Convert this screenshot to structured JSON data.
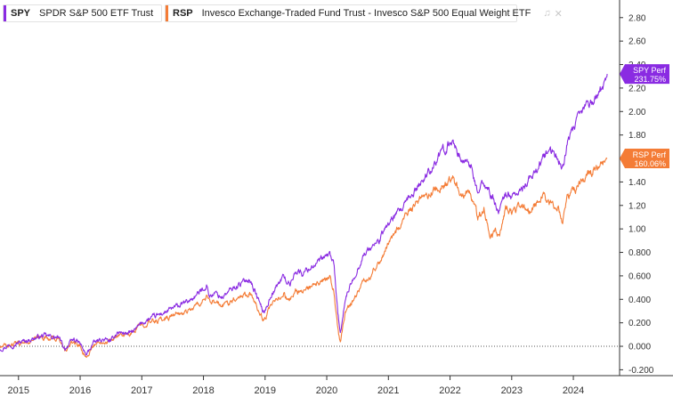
{
  "legend": {
    "items": [
      {
        "symbol": "SPY",
        "name": "SPDR S&P 500 ETF Trust",
        "color": "#8a2be2"
      },
      {
        "symbol": "RSP",
        "name": "Invesco Exchange-Traded Fund Trust - Invesco S&P 500 Equal Weight ETF",
        "color": "#f47c36"
      }
    ]
  },
  "chart_data": {
    "type": "line",
    "title": "",
    "xlabel": "",
    "ylabel": "",
    "xlim": [
      2014.7,
      2024.75
    ],
    "ylim": [
      -0.25,
      2.95
    ],
    "x_ticks": [
      "2015",
      "2016",
      "2017",
      "2018",
      "2019",
      "2020",
      "2021",
      "2022",
      "2023",
      "2024"
    ],
    "y_ticks": [
      "2.80",
      "2.60",
      "2.40",
      "2.20",
      "2.00",
      "1.80",
      "1.60",
      "1.40",
      "1.20",
      "1.00",
      "0.800",
      "0.600",
      "0.400",
      "0.200",
      "0.000",
      "-0.200"
    ],
    "zero_line": true,
    "series": [
      {
        "name": "SPY",
        "label": "SPY Perf",
        "last_value": "231.75%",
        "color": "#8a2be2",
        "x": [
          2014.7,
          2014.85,
          2015.0,
          2015.2,
          2015.4,
          2015.55,
          2015.65,
          2015.75,
          2015.9,
          2016.0,
          2016.1,
          2016.2,
          2016.35,
          2016.5,
          2016.6,
          2016.8,
          2016.9,
          2017.0,
          2017.25,
          2017.5,
          2017.75,
          2017.9,
          2018.05,
          2018.1,
          2018.2,
          2018.3,
          2018.5,
          2018.75,
          2018.85,
          2018.98,
          2019.1,
          2019.3,
          2019.4,
          2019.5,
          2019.6,
          2019.75,
          2019.9,
          2020.05,
          2020.12,
          2020.18,
          2020.22,
          2020.3,
          2020.45,
          2020.6,
          2020.7,
          2020.85,
          2021.0,
          2021.2,
          2021.4,
          2021.6,
          2021.8,
          2021.95,
          2022.05,
          2022.2,
          2022.3,
          2022.45,
          2022.55,
          2022.65,
          2022.75,
          2022.8,
          2022.9,
          2023.0,
          2023.15,
          2023.3,
          2023.5,
          2023.6,
          2023.75,
          2023.82,
          2023.9,
          2024.05,
          2024.2,
          2024.35,
          2024.45,
          2024.55
        ],
        "values": [
          -0.02,
          0.01,
          0.03,
          0.06,
          0.09,
          0.08,
          0.07,
          -0.02,
          0.06,
          0.02,
          -0.08,
          0.02,
          0.06,
          0.04,
          0.12,
          0.11,
          0.14,
          0.2,
          0.26,
          0.32,
          0.38,
          0.44,
          0.52,
          0.43,
          0.45,
          0.42,
          0.5,
          0.58,
          0.45,
          0.28,
          0.44,
          0.6,
          0.52,
          0.65,
          0.62,
          0.68,
          0.73,
          0.78,
          0.7,
          0.25,
          0.1,
          0.4,
          0.6,
          0.78,
          0.83,
          0.9,
          1.05,
          1.15,
          1.3,
          1.45,
          1.6,
          1.7,
          1.76,
          1.56,
          1.6,
          1.3,
          1.4,
          1.3,
          1.2,
          1.15,
          1.3,
          1.28,
          1.32,
          1.42,
          1.6,
          1.65,
          1.62,
          1.5,
          1.72,
          1.9,
          2.05,
          2.1,
          2.18,
          2.32
        ]
      },
      {
        "name": "RSP",
        "label": "RSP Perf",
        "last_value": "160.06%",
        "color": "#f47c36",
        "x": [
          2014.7,
          2014.85,
          2015.0,
          2015.2,
          2015.4,
          2015.55,
          2015.65,
          2015.75,
          2015.9,
          2016.0,
          2016.1,
          2016.2,
          2016.35,
          2016.5,
          2016.6,
          2016.8,
          2016.9,
          2017.0,
          2017.25,
          2017.5,
          2017.75,
          2017.9,
          2018.05,
          2018.1,
          2018.2,
          2018.3,
          2018.5,
          2018.75,
          2018.85,
          2018.98,
          2019.1,
          2019.3,
          2019.4,
          2019.5,
          2019.6,
          2019.75,
          2019.9,
          2020.05,
          2020.12,
          2020.18,
          2020.22,
          2020.3,
          2020.45,
          2020.6,
          2020.7,
          2020.85,
          2021.0,
          2021.2,
          2021.4,
          2021.6,
          2021.8,
          2021.95,
          2022.05,
          2022.2,
          2022.3,
          2022.45,
          2022.55,
          2022.65,
          2022.75,
          2022.8,
          2022.9,
          2023.0,
          2023.15,
          2023.3,
          2023.5,
          2023.6,
          2023.75,
          2023.82,
          2023.9,
          2024.05,
          2024.2,
          2024.35,
          2024.45,
          2024.55
        ],
        "values": [
          -0.01,
          0.01,
          0.02,
          0.05,
          0.08,
          0.07,
          0.06,
          -0.04,
          0.04,
          0.0,
          -0.1,
          0.0,
          0.05,
          0.04,
          0.1,
          0.09,
          0.14,
          0.19,
          0.22,
          0.26,
          0.3,
          0.35,
          0.42,
          0.36,
          0.37,
          0.34,
          0.41,
          0.46,
          0.35,
          0.22,
          0.34,
          0.45,
          0.38,
          0.48,
          0.46,
          0.5,
          0.54,
          0.58,
          0.45,
          0.15,
          0.03,
          0.28,
          0.42,
          0.55,
          0.6,
          0.72,
          0.88,
          1.05,
          1.18,
          1.28,
          1.34,
          1.38,
          1.42,
          1.28,
          1.35,
          1.1,
          1.18,
          0.95,
          0.98,
          0.92,
          1.18,
          1.15,
          1.2,
          1.15,
          1.3,
          1.22,
          1.2,
          1.05,
          1.25,
          1.35,
          1.45,
          1.52,
          1.55,
          1.6
        ]
      }
    ]
  }
}
